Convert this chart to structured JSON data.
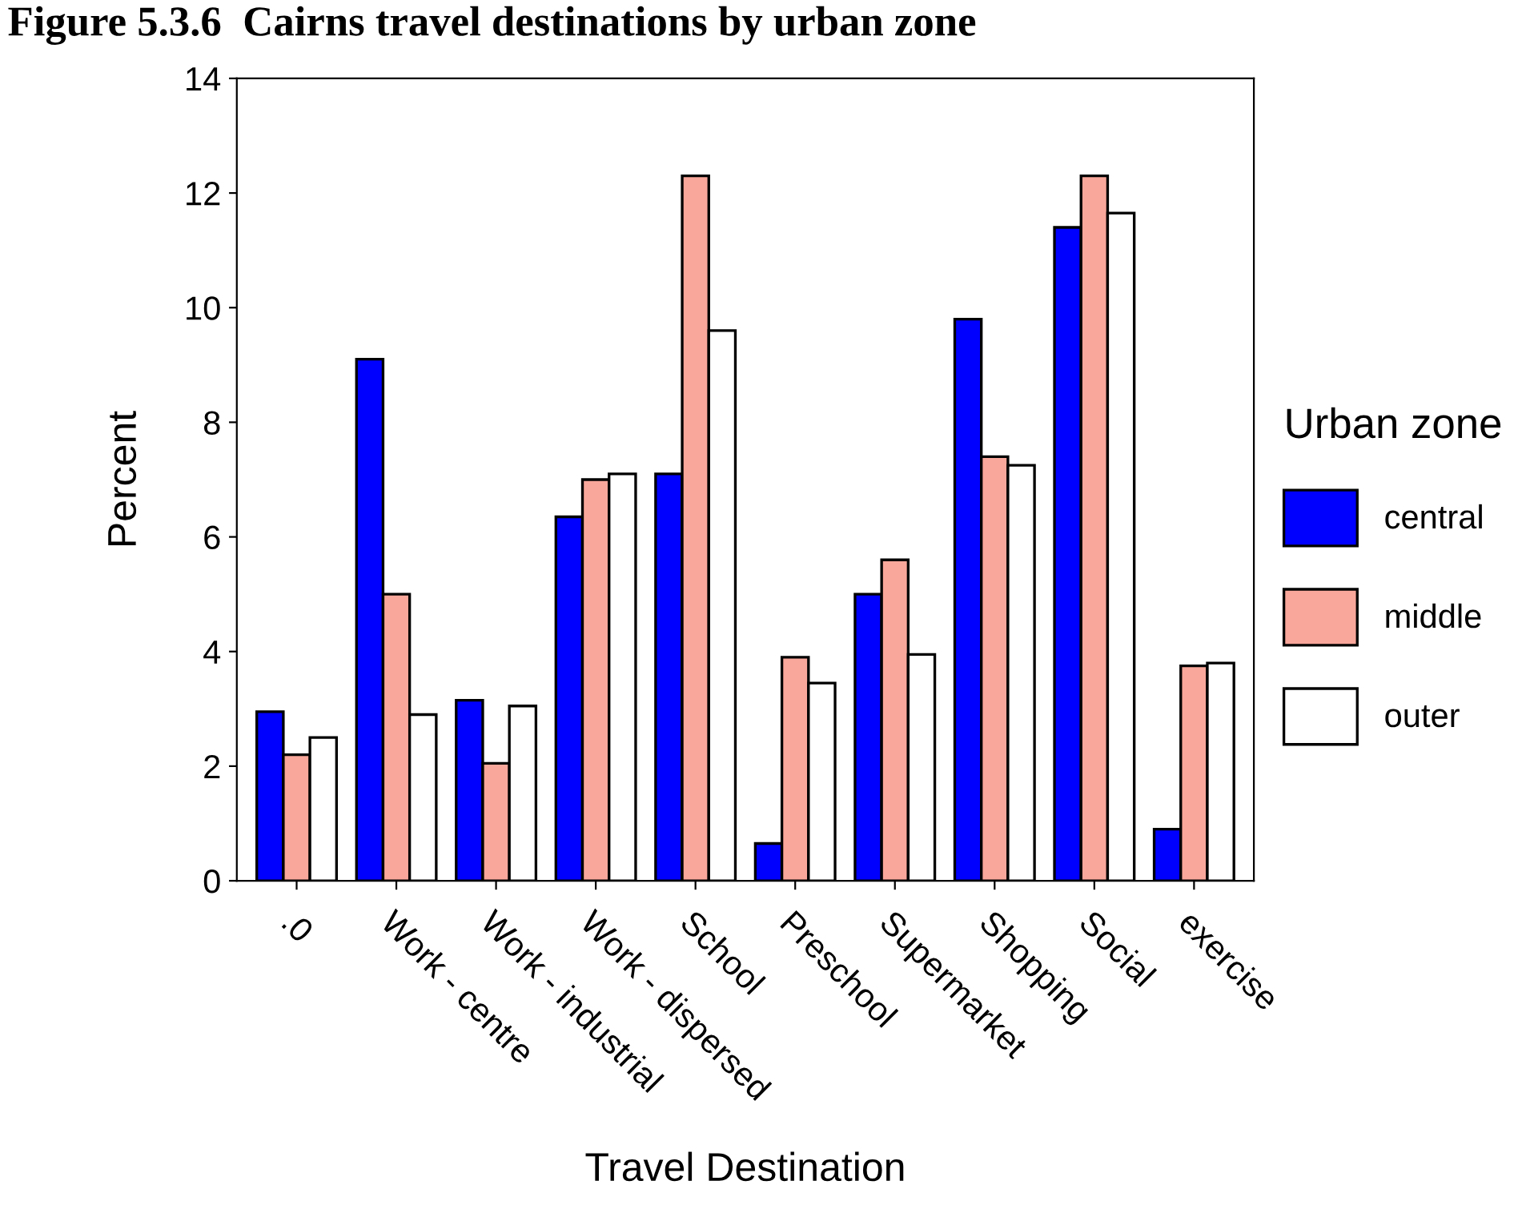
{
  "chart_data": {
    "type": "bar",
    "title": "Figure 5.3.6  Cairns travel destinations by urban zone",
    "xlabel": "Travel Destination",
    "ylabel": "Percent",
    "legend_title": "Urban zone",
    "categories": [
      ".0",
      "Work - centre",
      "Work - industrial",
      "Work - dispersed",
      "School",
      "Preschool",
      "Supermarket",
      "Shopping",
      "Social",
      "exercise"
    ],
    "series": [
      {
        "name": "central",
        "color": "#0000ff",
        "values": [
          2.95,
          9.1,
          3.15,
          6.35,
          7.1,
          0.65,
          5.0,
          9.8,
          11.4,
          0.9
        ]
      },
      {
        "name": "middle",
        "color": "#f9a79a",
        "values": [
          2.2,
          5.0,
          2.05,
          7.0,
          12.3,
          3.9,
          5.6,
          7.4,
          12.3,
          3.75
        ]
      },
      {
        "name": "outer",
        "color": "#ffffff",
        "values": [
          2.5,
          2.9,
          3.05,
          7.1,
          9.6,
          3.45,
          3.95,
          7.25,
          11.65,
          3.8
        ]
      }
    ],
    "ylim": [
      0,
      14
    ],
    "yticks": [
      0,
      2,
      4,
      6,
      8,
      10,
      12,
      14
    ],
    "grid": false,
    "legend": "right"
  }
}
